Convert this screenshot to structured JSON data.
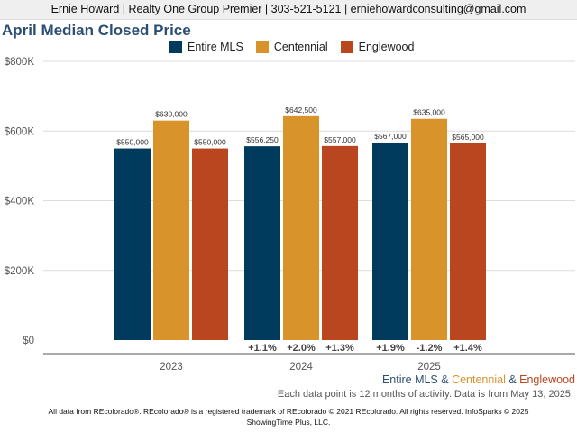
{
  "header": {
    "contact": "Ernie Howard | Realty One Group Premier | 303-521-5121 | erniehowardconsulting@gmail.com"
  },
  "chart_data": {
    "type": "bar",
    "title": "April Median Closed Price",
    "categories": [
      "2023",
      "2024",
      "2025"
    ],
    "ylim": [
      0,
      800000
    ],
    "yticks": [
      0,
      200000,
      400000,
      600000,
      800000
    ],
    "ytick_labels": [
      "$0",
      "$200K",
      "$400K",
      "$600K",
      "$800K"
    ],
    "grid": true,
    "legend_position": "top",
    "series": [
      {
        "name": "Entire MLS",
        "color": "#003a5d",
        "values": [
          550000,
          556250,
          567000
        ],
        "value_labels": [
          "$550,000",
          "$556,250",
          "$567,000"
        ],
        "change_labels": [
          "",
          "+1.1%",
          "+1.9%"
        ]
      },
      {
        "name": "Centennial",
        "color": "#d8942b",
        "values": [
          630000,
          642500,
          635000
        ],
        "value_labels": [
          "$630,000",
          "$642,500",
          "$635,000"
        ],
        "change_labels": [
          "",
          "+2.0%",
          "-1.2%"
        ]
      },
      {
        "name": "Englewood",
        "color": "#b9461e",
        "values": [
          550000,
          557000,
          565000
        ],
        "value_labels": [
          "$550,000",
          "$557,000",
          "$565,000"
        ],
        "change_labels": [
          "",
          "+1.3%",
          "+1.4%"
        ]
      }
    ]
  },
  "footer": {
    "series_1": "Entire MLS",
    "sep_1": " & ",
    "series_2": "Centennial",
    "sep_2": " & ",
    "series_3": "Englewood",
    "note": "Each data point is 12 months of activity. Data is from May 13, 2025.",
    "legal_1": "All data from REcolorado®. REcolorado® is a registered trademark of REcolorado © 2021 REcolorado. All rights reserved. InfoSparks © 2025",
    "legal_2": "ShowingTime Plus, LLC."
  },
  "colors": {
    "title": "#2c4f73",
    "grid": "#dcdcdc",
    "axis_text": "#555555"
  }
}
